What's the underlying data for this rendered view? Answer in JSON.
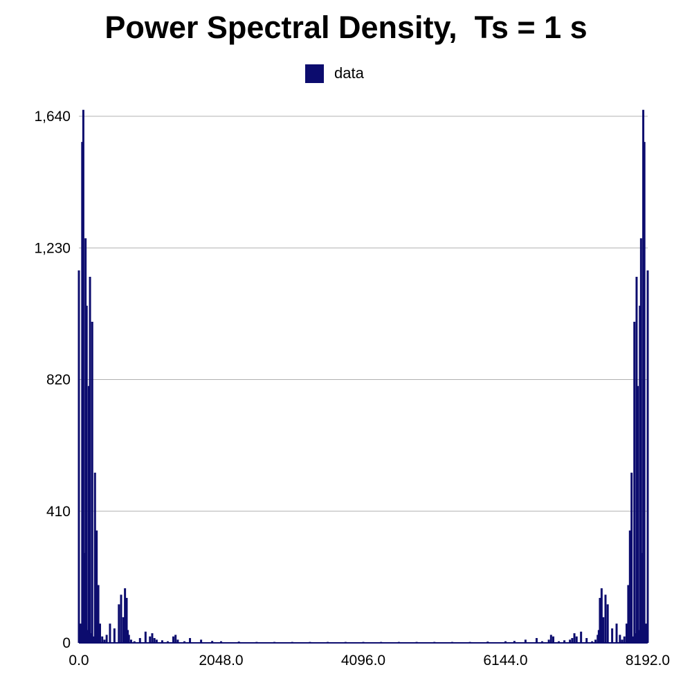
{
  "chart_data": {
    "type": "bar",
    "title": "Power Spectral Density,  Ts = 1 s",
    "xlabel": "",
    "ylabel": "",
    "xlim": [
      0,
      8192
    ],
    "ylim": [
      0,
      1640
    ],
    "x_ticks": [
      "0.0",
      "2048.0",
      "4096.0",
      "6144.0",
      "8192.0"
    ],
    "x_tick_values": [
      0,
      2048,
      4096,
      6144,
      8192
    ],
    "y_ticks": [
      "0",
      "410",
      "820",
      "1,230",
      "1,640"
    ],
    "y_tick_values": [
      0,
      410,
      820,
      1230,
      1640
    ],
    "grid": "horizontal",
    "legend": {
      "position": "top-center",
      "entries": [
        "data"
      ]
    },
    "color": "#0c0c6e",
    "series": [
      {
        "name": "data",
        "x": [
          0,
          24,
          48,
          64,
          80,
          96,
          112,
          128,
          144,
          160,
          176,
          192,
          208,
          232,
          256,
          280,
          304,
          336,
          368,
          400,
          448,
          512,
          576,
          608,
          640,
          664,
          688,
          704,
          720,
          752,
          800,
          880,
          960,
          1024,
          1056,
          1088,
          1120,
          1200,
          1280,
          1360,
          1392,
          1424,
          1520,
          1600,
          1760,
          1920,
          2048,
          2304,
          2560,
          2816,
          3072,
          3328,
          3584,
          3840,
          4096
        ],
        "values": [
          1160,
          60,
          1560,
          1660,
          280,
          1260,
          1050,
          40,
          800,
          1140,
          30,
          1000,
          20,
          530,
          350,
          180,
          60,
          20,
          10,
          25,
          60,
          45,
          120,
          150,
          80,
          170,
          140,
          40,
          25,
          10,
          5,
          15,
          35,
          20,
          30,
          15,
          10,
          8,
          5,
          20,
          25,
          10,
          5,
          15,
          10,
          6,
          5,
          4,
          3,
          3,
          3,
          3,
          3,
          3,
          3
        ]
      }
    ]
  }
}
